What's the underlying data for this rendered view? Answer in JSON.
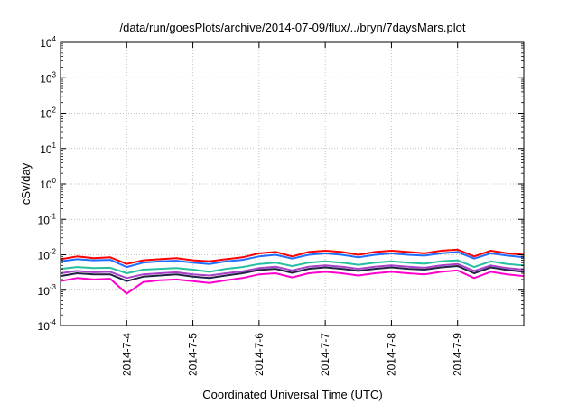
{
  "chart_data": {
    "type": "line",
    "title": "/data/run/goesPlots/archive/2014-07-09/flux/../bryn/7daysMars.plot",
    "xlabel": "Coordinated Universal Time (UTC)",
    "ylabel": "cSv/day",
    "yscale": "log",
    "ylim": [
      0.0001,
      10000
    ],
    "ytick_labels": [
      {
        "base": "10",
        "exp": "-4"
      },
      {
        "base": "10",
        "exp": "-3"
      },
      {
        "base": "10",
        "exp": "-2"
      },
      {
        "base": "10",
        "exp": "-1"
      },
      {
        "base": "10",
        "exp": "0"
      },
      {
        "base": "10",
        "exp": "1"
      },
      {
        "base": "10",
        "exp": "2"
      },
      {
        "base": "10",
        "exp": "3"
      },
      {
        "base": "10",
        "exp": "4"
      }
    ],
    "xlim": [
      "2014-07-03 00:00",
      "2014-07-10 00:00"
    ],
    "xtick_labels": [
      "2014-7-4",
      "2014-7-5",
      "2014-7-6",
      "2014-7-7",
      "2014-7-8",
      "2014-7-9"
    ],
    "grid": true,
    "legend": "none",
    "x": [
      "2014-07-03 00:00",
      "2014-07-03 06:00",
      "2014-07-03 12:00",
      "2014-07-03 18:00",
      "2014-07-04 00:00",
      "2014-07-04 06:00",
      "2014-07-04 12:00",
      "2014-07-04 18:00",
      "2014-07-05 00:00",
      "2014-07-05 06:00",
      "2014-07-05 12:00",
      "2014-07-05 18:00",
      "2014-07-06 00:00",
      "2014-07-06 06:00",
      "2014-07-06 12:00",
      "2014-07-06 18:00",
      "2014-07-07 00:00",
      "2014-07-07 06:00",
      "2014-07-07 12:00",
      "2014-07-07 18:00",
      "2014-07-08 00:00",
      "2014-07-08 06:00",
      "2014-07-08 12:00",
      "2014-07-08 18:00",
      "2014-07-09 00:00",
      "2014-07-09 06:00",
      "2014-07-09 12:00",
      "2014-07-09 18:00",
      "2014-07-10 00:00"
    ],
    "series": [
      {
        "color": "#ff0000",
        "values": [
          0.0075,
          0.009,
          0.008,
          0.0085,
          0.0055,
          0.007,
          0.0075,
          0.008,
          0.007,
          0.0065,
          0.0075,
          0.0085,
          0.011,
          0.012,
          0.009,
          0.012,
          0.013,
          0.012,
          0.01,
          0.012,
          0.013,
          0.012,
          0.011,
          0.013,
          0.014,
          0.009,
          0.013,
          0.011,
          0.01
        ]
      },
      {
        "color": "#1f6fff",
        "values": [
          0.0065,
          0.0075,
          0.007,
          0.0072,
          0.0045,
          0.006,
          0.0065,
          0.0068,
          0.006,
          0.0055,
          0.0065,
          0.0072,
          0.009,
          0.01,
          0.0078,
          0.01,
          0.011,
          0.01,
          0.0085,
          0.01,
          0.011,
          0.01,
          0.0095,
          0.011,
          0.012,
          0.0078,
          0.011,
          0.0095,
          0.0085
        ]
      },
      {
        "color": "#26c0a0",
        "values": [
          0.004,
          0.0045,
          0.0042,
          0.0043,
          0.003,
          0.0038,
          0.004,
          0.0042,
          0.0038,
          0.0033,
          0.004,
          0.0045,
          0.0055,
          0.006,
          0.0048,
          0.006,
          0.0065,
          0.006,
          0.0052,
          0.006,
          0.0065,
          0.006,
          0.0056,
          0.0065,
          0.007,
          0.0045,
          0.0065,
          0.0055,
          0.005
        ]
      },
      {
        "color": "#ab40c8",
        "values": [
          0.003,
          0.0035,
          0.0032,
          0.0033,
          0.0022,
          0.0028,
          0.003,
          0.0032,
          0.0028,
          0.0026,
          0.003,
          0.0034,
          0.0042,
          0.0046,
          0.0036,
          0.0046,
          0.005,
          0.0046,
          0.004,
          0.0046,
          0.005,
          0.0046,
          0.0043,
          0.005,
          0.0055,
          0.0035,
          0.005,
          0.0042,
          0.0038
        ]
      },
      {
        "color": "#222244",
        "values": [
          0.0025,
          0.003,
          0.0028,
          0.0028,
          0.0018,
          0.0024,
          0.0026,
          0.0028,
          0.0024,
          0.0022,
          0.0026,
          0.003,
          0.0037,
          0.004,
          0.0031,
          0.004,
          0.0044,
          0.004,
          0.0035,
          0.004,
          0.0044,
          0.004,
          0.0038,
          0.0044,
          0.0048,
          0.003,
          0.0044,
          0.0037,
          0.0033
        ]
      },
      {
        "color": "#ff00cc",
        "values": [
          0.0018,
          0.0022,
          0.002,
          0.0021,
          0.0008,
          0.0017,
          0.0019,
          0.002,
          0.0018,
          0.0016,
          0.0019,
          0.0022,
          0.0028,
          0.003,
          0.0023,
          0.003,
          0.0033,
          0.003,
          0.0026,
          0.003,
          0.0033,
          0.003,
          0.0028,
          0.0033,
          0.0036,
          0.0022,
          0.0033,
          0.0028,
          0.0025
        ]
      }
    ]
  }
}
